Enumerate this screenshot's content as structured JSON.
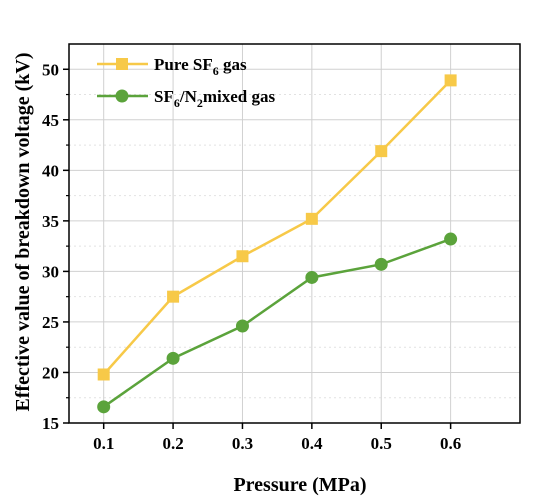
{
  "chart_data": {
    "type": "line",
    "xlabel": "Pressure (MPa)",
    "ylabel": "Effective value of breakdown voltage (kV)",
    "x": [
      0.1,
      0.2,
      0.3,
      0.4,
      0.5,
      0.6
    ],
    "x_tick_labels": [
      "0.1",
      "0.2",
      "0.3",
      "0.4",
      "0.5",
      "0.6"
    ],
    "xlim": [
      0.05,
      0.7
    ],
    "ylim": [
      15,
      52.5
    ],
    "y_ticks": [
      15,
      20,
      25,
      30,
      35,
      40,
      45,
      50
    ],
    "y_tick_labels": [
      "15",
      "20",
      "25",
      "30",
      "35",
      "40",
      "45",
      "50"
    ],
    "grid": true,
    "legend_position": "top-left",
    "series": [
      {
        "name": "Pure SF6 gas",
        "legend": {
          "pre": "Pure SF",
          "sub": "6",
          "post": " gas"
        },
        "color": "#F7C948",
        "marker": "square",
        "values": [
          19.8,
          27.5,
          31.5,
          35.2,
          41.9,
          48.9
        ]
      },
      {
        "name": "SF6/N2mixed gas",
        "legend": {
          "a": "SF",
          "sub1": "6",
          "b": "/N",
          "sub2": "2",
          "c": "mixed gas"
        },
        "color": "#5BA33B",
        "marker": "circle",
        "values": [
          16.6,
          21.4,
          24.6,
          29.4,
          30.7,
          33.2
        ]
      }
    ]
  }
}
